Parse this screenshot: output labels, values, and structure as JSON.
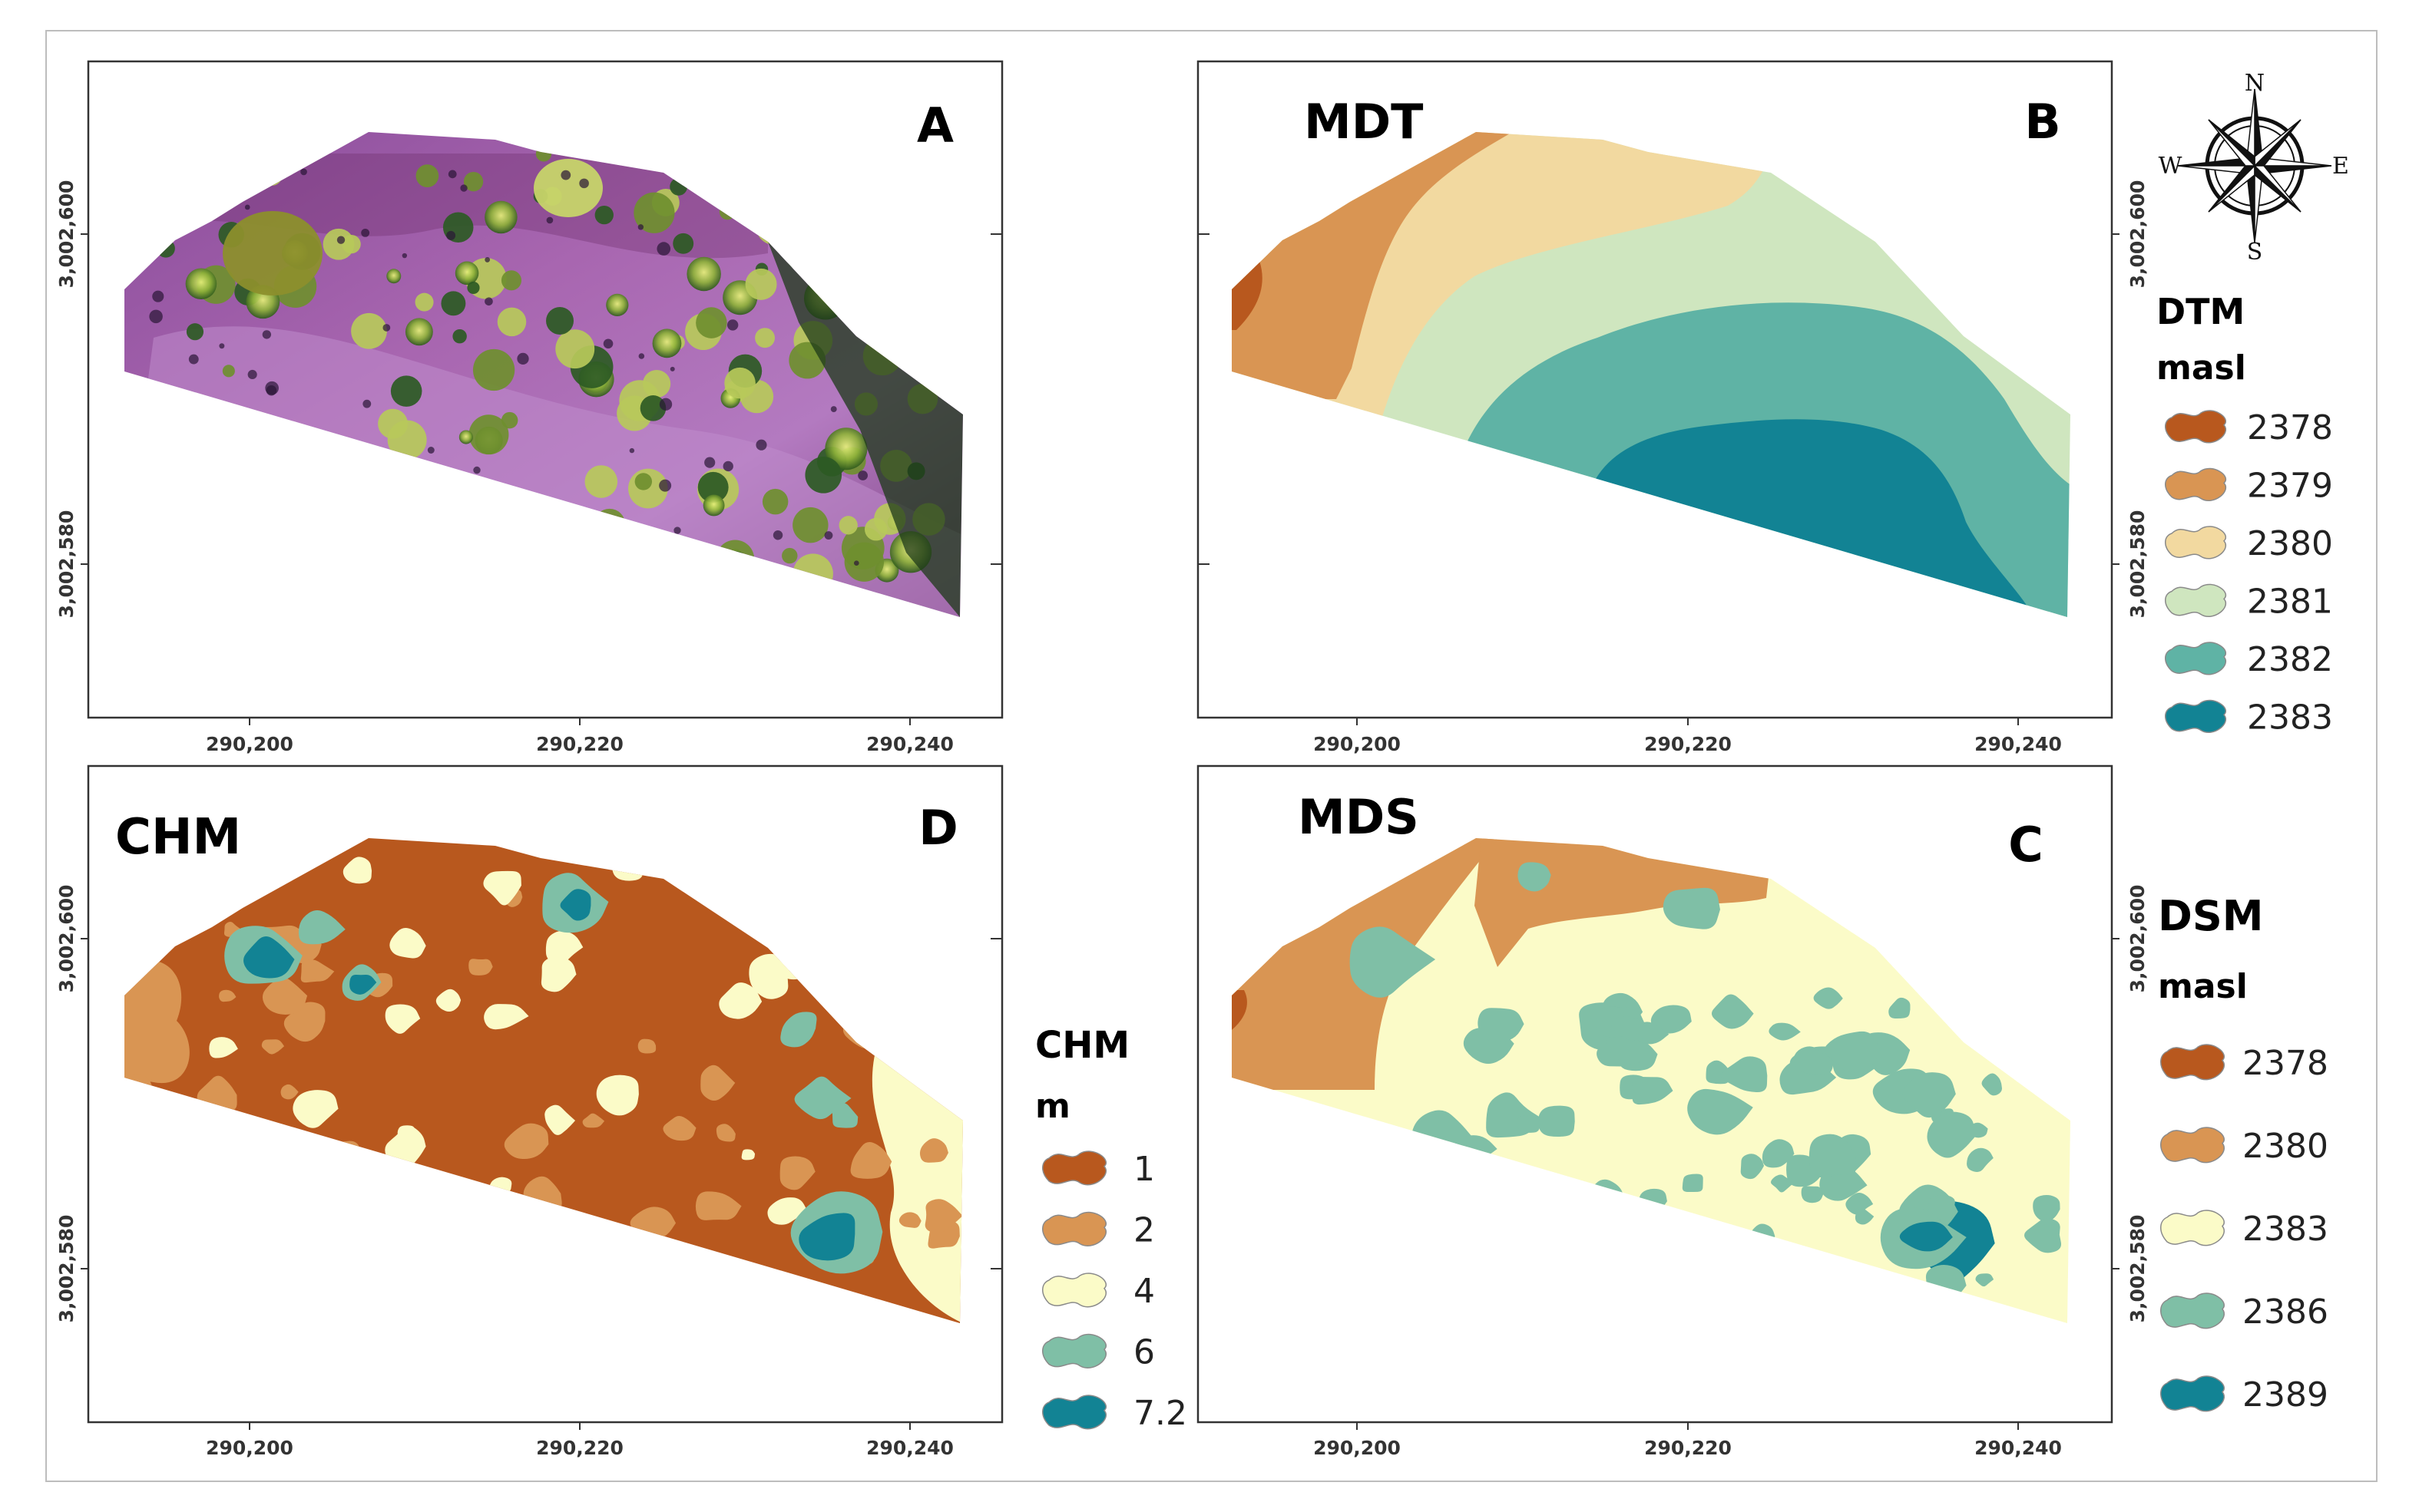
{
  "panels": {
    "A": {
      "letter": "A"
    },
    "B": {
      "letter": "B",
      "title": "MDT"
    },
    "C": {
      "letter": "C",
      "title": "MDS"
    },
    "D": {
      "letter": "D",
      "title": "CHM"
    }
  },
  "axes": {
    "x_ticks": [
      "290,200",
      "290,220",
      "290,240"
    ],
    "y_ticks": [
      "3,002,600",
      "3,002,580"
    ]
  },
  "compass": {
    "n": "N",
    "s": "S",
    "e": "E",
    "w": "W"
  },
  "legends": {
    "dtm": {
      "title": "DTM",
      "unit": "masl",
      "items": [
        {
          "label": "2378",
          "color": "#b8581e"
        },
        {
          "label": "2379",
          "color": "#d99553"
        },
        {
          "label": "2380",
          "color": "#f2d9a0"
        },
        {
          "label": "2381",
          "color": "#cfe6bf"
        },
        {
          "label": "2382",
          "color": "#5fb3a5"
        },
        {
          "label": "2383",
          "color": "#128394"
        }
      ]
    },
    "dsm": {
      "title": "DSM",
      "unit": "masl",
      "items": [
        {
          "label": "2378",
          "color": "#b8581e"
        },
        {
          "label": "2380",
          "color": "#d99553"
        },
        {
          "label": "2383",
          "color": "#fbfbc8"
        },
        {
          "label": "2386",
          "color": "#7fbfa6"
        },
        {
          "label": "2389",
          "color": "#128394"
        }
      ]
    },
    "chm": {
      "title": "CHM",
      "unit": "m",
      "items": [
        {
          "label": "1",
          "color": "#b8581e"
        },
        {
          "label": "2",
          "color": "#d99553"
        },
        {
          "label": "4",
          "color": "#fbfbc8"
        },
        {
          "label": "6",
          "color": "#7fbfa6"
        },
        {
          "label": "7.2",
          "color": "#128394"
        }
      ]
    }
  }
}
